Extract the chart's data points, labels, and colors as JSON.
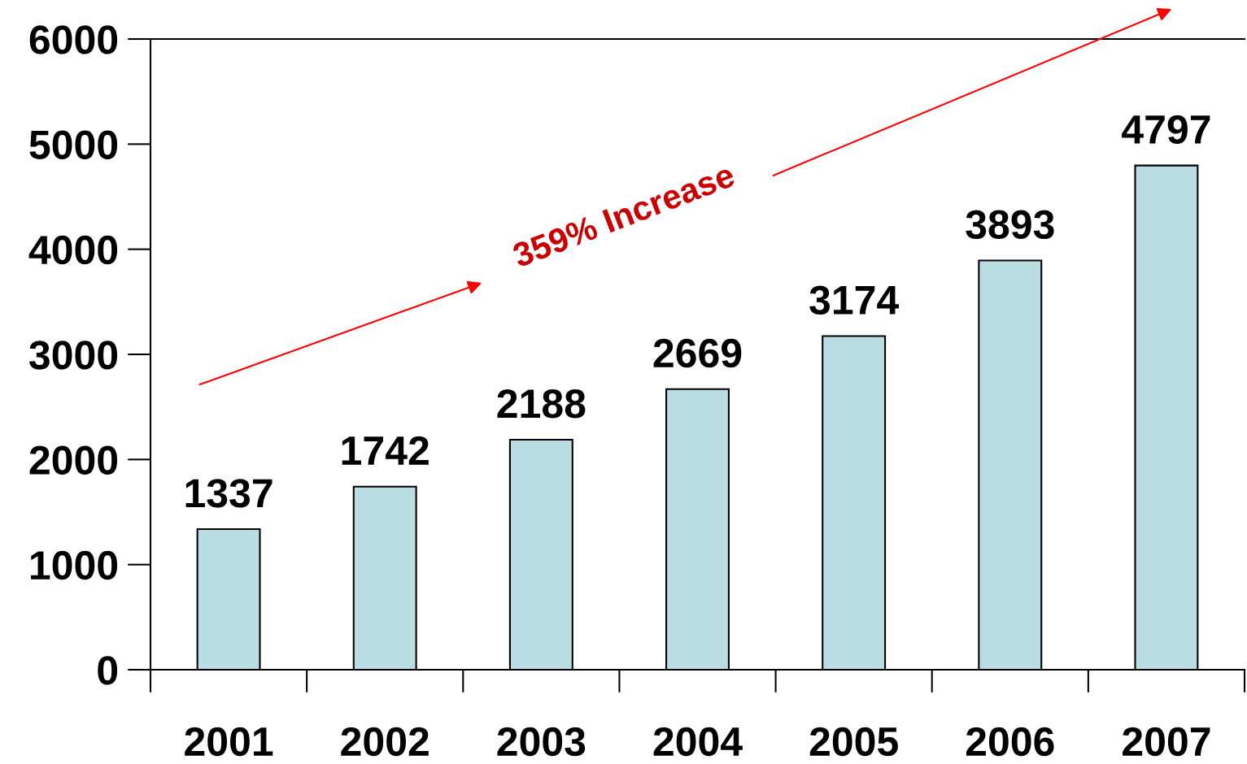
{
  "chart_data": {
    "type": "bar",
    "categories": [
      "2001",
      "2002",
      "2003",
      "2004",
      "2005",
      "2006",
      "2007"
    ],
    "values": [
      1337,
      1742,
      2188,
      2669,
      3174,
      3893,
      4797
    ],
    "color": "#b9dde3",
    "ylim": [
      0,
      6000
    ],
    "yticks": [
      0,
      1000,
      2000,
      3000,
      4000,
      5000,
      6000
    ],
    "data_labels": true,
    "annotations": [
      "359% Increase"
    ]
  }
}
